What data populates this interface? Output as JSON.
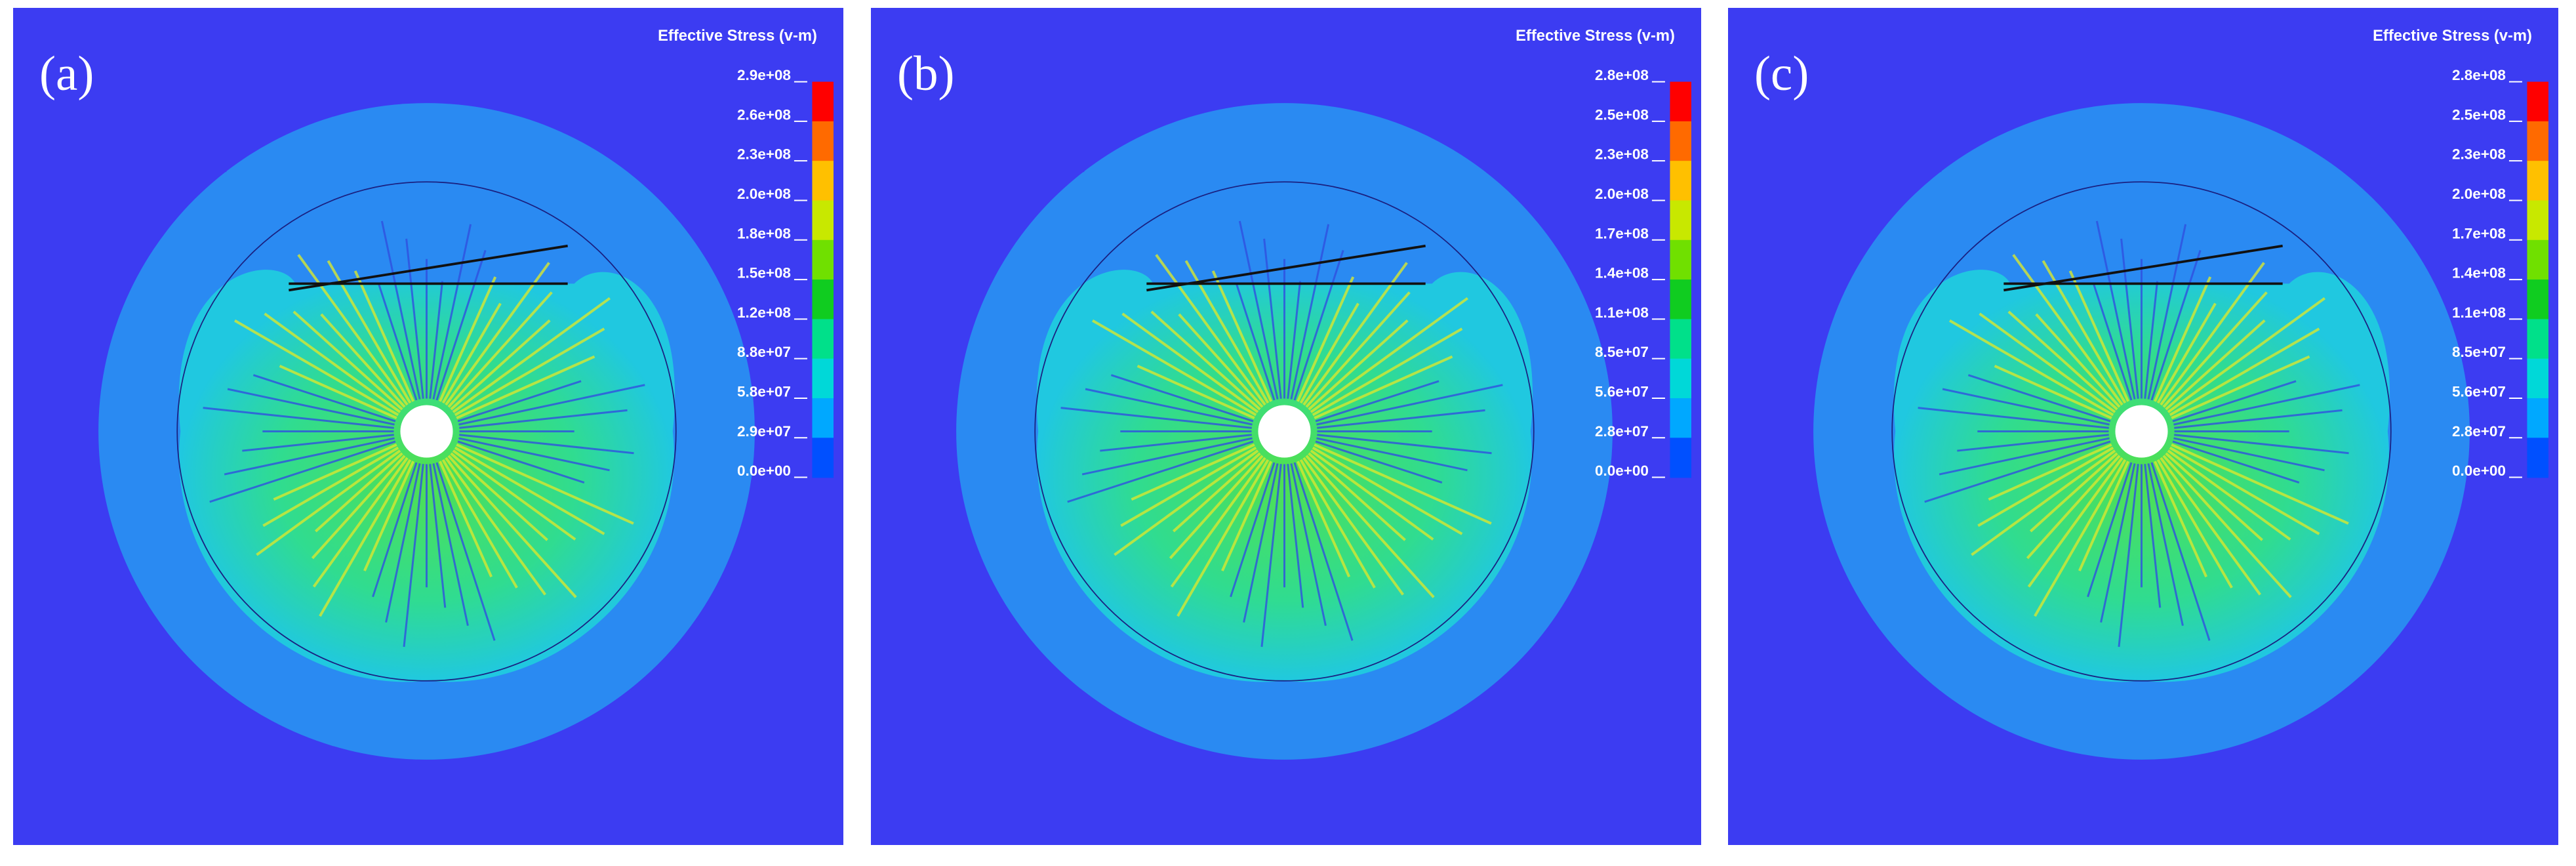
{
  "panels": [
    {
      "label": "(a)",
      "legend_title": "Effective Stress (v-m)",
      "legend_labels": [
        "2.9e+08",
        "2.6e+08",
        "2.3e+08",
        "2.0e+08",
        "1.8e+08",
        "1.5e+08",
        "1.2e+08",
        "8.8e+07",
        "5.8e+07",
        "2.9e+07",
        "0.0e+00"
      ]
    },
    {
      "label": "(b)",
      "legend_title": "Effective Stress (v-m)",
      "legend_labels": [
        "2.8e+08",
        "2.5e+08",
        "2.3e+08",
        "2.0e+08",
        "1.7e+08",
        "1.4e+08",
        "1.1e+08",
        "8.5e+07",
        "5.6e+07",
        "2.8e+07",
        "0.0e+00"
      ]
    },
    {
      "label": "(c)",
      "legend_title": "Effective Stress (v-m)",
      "legend_labels": [
        "2.8e+08",
        "2.5e+08",
        "2.3e+08",
        "2.0e+08",
        "1.7e+08",
        "1.4e+08",
        "1.1e+08",
        "8.5e+07",
        "5.6e+07",
        "2.8e+07",
        "0.0e+00"
      ]
    }
  ]
}
